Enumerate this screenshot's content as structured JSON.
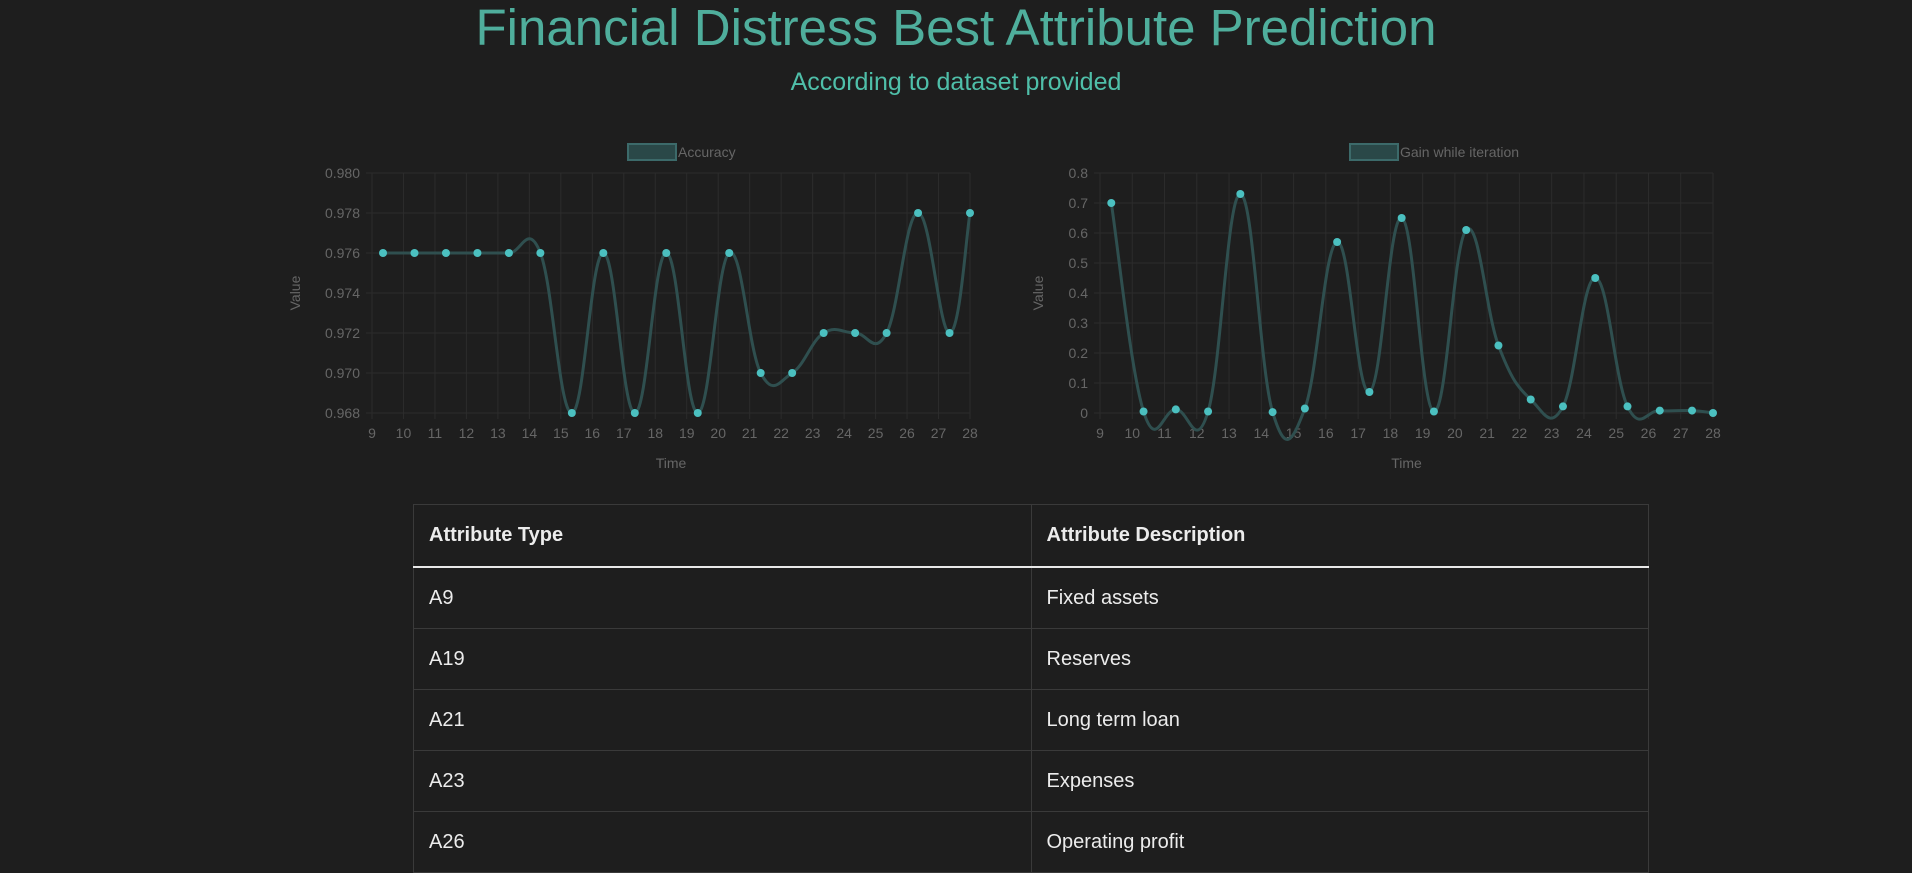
{
  "header": {
    "title": "Financial Distress Best Attribute Prediction",
    "subtitle": "According to dataset provided"
  },
  "colors": {
    "title": "#4fae9c",
    "line": "#2f4f4f",
    "point": "#4bc0c0",
    "legend_box": "#2a4848",
    "grid": "#2c2c2c",
    "text": "#666666"
  },
  "chart_data": [
    {
      "type": "line",
      "legend": "Accuracy",
      "xlabel": "Time",
      "ylabel": "Value",
      "x_ticks": [
        9,
        10,
        11,
        12,
        13,
        14,
        15,
        16,
        17,
        18,
        19,
        20,
        21,
        22,
        23,
        24,
        25,
        26,
        27,
        28
      ],
      "ylim": [
        0.968,
        0.98
      ],
      "y_ticks": [
        "0.968",
        "0.970",
        "0.972",
        "0.974",
        "0.976",
        "0.978",
        "0.980"
      ],
      "x": [
        9.35,
        10.35,
        11.35,
        12.35,
        13.35,
        14.35,
        15.35,
        16.35,
        17.35,
        18.35,
        19.35,
        20.35,
        21.35,
        22.35,
        23.35,
        24.35,
        25.35,
        26.35,
        27.35,
        28
      ],
      "values": [
        0.976,
        0.976,
        0.976,
        0.976,
        0.976,
        0.976,
        0.968,
        0.976,
        0.968,
        0.976,
        0.968,
        0.976,
        0.97,
        0.97,
        0.972,
        0.972,
        0.972,
        0.978,
        0.972,
        0.978
      ],
      "grid": true,
      "legend_position": "top"
    },
    {
      "type": "line",
      "legend": "Gain while iteration",
      "xlabel": "Time",
      "ylabel": "Value",
      "x_ticks": [
        9,
        10,
        11,
        12,
        13,
        14,
        15,
        16,
        17,
        18,
        19,
        20,
        21,
        22,
        23,
        24,
        25,
        26,
        27,
        28
      ],
      "ylim": [
        0,
        0.8
      ],
      "y_ticks": [
        "0",
        "0.1",
        "0.2",
        "0.3",
        "0.4",
        "0.5",
        "0.6",
        "0.7",
        "0.8"
      ],
      "x": [
        9.35,
        10.35,
        11.35,
        12.35,
        13.35,
        14.35,
        15.35,
        16.35,
        17.35,
        18.35,
        19.35,
        20.35,
        21.35,
        22.35,
        23.35,
        24.35,
        25.35,
        26.35,
        27.35,
        28
      ],
      "values": [
        0.7,
        0.005,
        0.012,
        0.005,
        0.73,
        0.003,
        0.015,
        0.57,
        0.07,
        0.65,
        0.005,
        0.61,
        0.225,
        0.045,
        0.022,
        0.45,
        0.022,
        0.008,
        0.008,
        0.0
      ],
      "grid": true,
      "legend_position": "top"
    }
  ],
  "table": {
    "headers": [
      "Attribute Type",
      "Attribute Description"
    ],
    "rows": [
      [
        "A9",
        "Fixed assets"
      ],
      [
        "A19",
        "Reserves"
      ],
      [
        "A21",
        "Long term loan"
      ],
      [
        "A23",
        "Expenses"
      ],
      [
        "A26",
        "Operating profit"
      ]
    ]
  }
}
